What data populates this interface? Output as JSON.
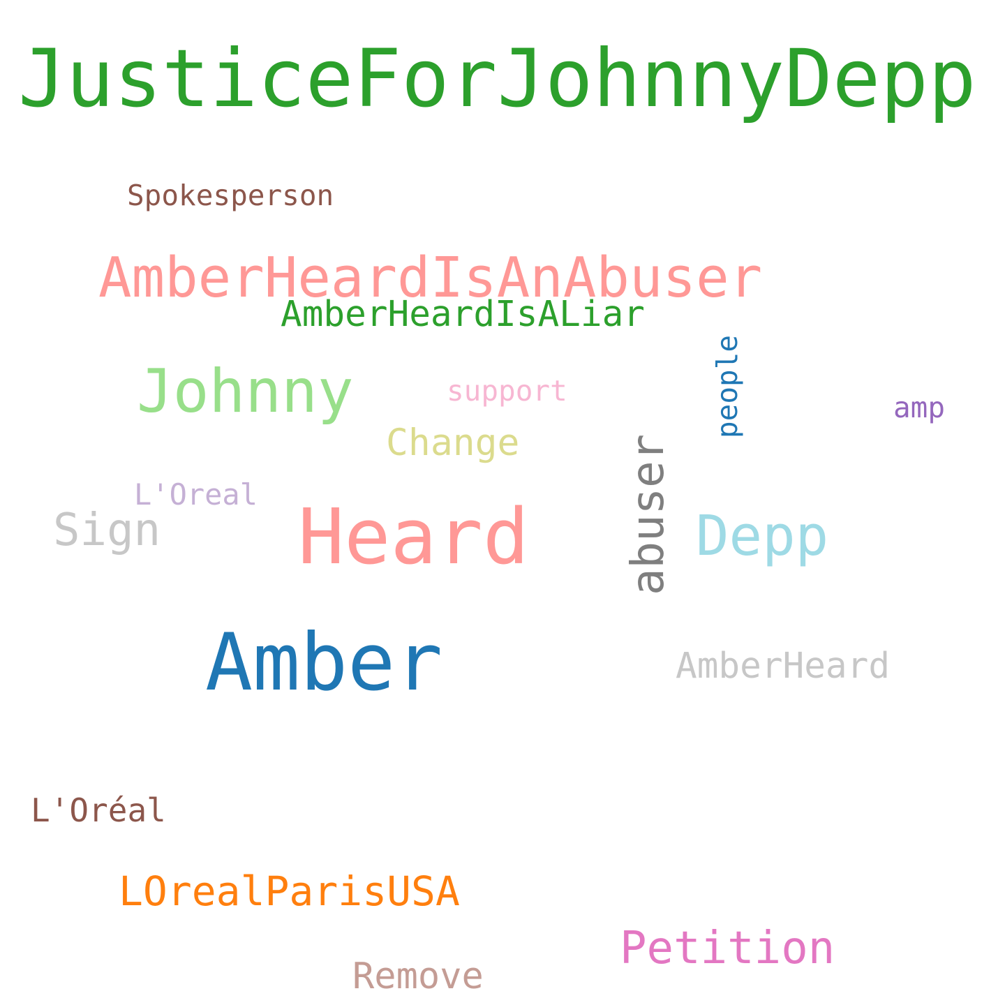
{
  "words": {
    "justice": {
      "text": "JusticeForJohnnyDepp",
      "color": "#2ca02c"
    },
    "spokesperson": {
      "text": "Spokesperson",
      "color": "#8c564b"
    },
    "abuser_tag": {
      "text": "AmberHeardIsAnAbuser",
      "color": "#ff9896"
    },
    "liar_tag": {
      "text": "AmberHeardIsALiar",
      "color": "#2ca02c"
    },
    "people": {
      "text": "people",
      "color": "#1f77b4"
    },
    "johnny": {
      "text": "Johnny",
      "color": "#98df8a"
    },
    "support": {
      "text": "support",
      "color": "#f7b6d2"
    },
    "amp": {
      "text": "amp",
      "color": "#9467bd"
    },
    "change": {
      "text": "Change",
      "color": "#dbdb8d"
    },
    "abuser": {
      "text": "abuser",
      "color": "#7f7f7f"
    },
    "loreal_plain": {
      "text": "L'Oreal",
      "color": "#c5b0d5"
    },
    "sign": {
      "text": "Sign",
      "color": "#c7c7c7"
    },
    "heard": {
      "text": "Heard",
      "color": "#ff9896"
    },
    "depp": {
      "text": "Depp",
      "color": "#9edae5"
    },
    "amber": {
      "text": "Amber",
      "color": "#1f77b4"
    },
    "amberheard": {
      "text": "AmberHeard",
      "color": "#c7c7c7"
    },
    "loreal_accent": {
      "text": "L'Oréal",
      "color": "#8c564b"
    },
    "lorealparis": {
      "text": "LOrealParisUSA",
      "color": "#ff7f0e"
    },
    "petition": {
      "text": "Petition",
      "color": "#e377c2"
    },
    "remove": {
      "text": "Remove",
      "color": "#c49c94"
    }
  }
}
